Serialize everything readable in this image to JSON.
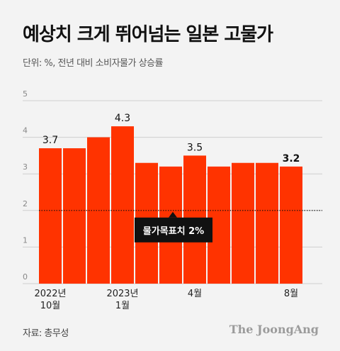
{
  "title": "예상치 크게 뛰어넘는 일본 고물가",
  "unit_note": "단위: %, 전년 대비 소비자물가 상승률",
  "source": "자료: 총무성",
  "brand": "The JoongAng",
  "colors": {
    "bar": "#ff3300",
    "target_line": "#111111",
    "callout_bg": "#111111",
    "callout_text": "#ffffff",
    "background": "#f3f3f3",
    "axis_text": "#888888",
    "grid": "#cfcfcf"
  },
  "chart_data": {
    "type": "bar",
    "categories": [
      "2022년 10월",
      "2022년 11월",
      "2022년 12월",
      "2023년 1월",
      "2023년 2월",
      "2023년 3월",
      "2023년 4월",
      "2023년 5월",
      "2023년 6월",
      "2023년 7월",
      "2023년 8월"
    ],
    "values": [
      3.7,
      3.7,
      4.0,
      4.3,
      3.3,
      3.2,
      3.5,
      3.2,
      3.3,
      3.3,
      3.2
    ],
    "x_tick_labels": [
      {
        "index": 0,
        "lines": [
          "2022년",
          "10월"
        ]
      },
      {
        "index": 3,
        "lines": [
          "2023년",
          "1월"
        ]
      },
      {
        "index": 6,
        "lines": [
          "4월"
        ]
      },
      {
        "index": 10,
        "lines": [
          "8월"
        ]
      }
    ],
    "data_labels": [
      {
        "index": 0,
        "text": "3.7"
      },
      {
        "index": 3,
        "text": "4.3"
      },
      {
        "index": 6,
        "text": "3.5"
      },
      {
        "index": 10,
        "text": "3.2"
      }
    ],
    "y_ticks": [
      0,
      1,
      2,
      3,
      4,
      5
    ],
    "ylim": [
      0,
      5
    ],
    "grid": true,
    "reference_line": {
      "value": 2,
      "label": "물가목표치 2%",
      "style": "dotted"
    }
  }
}
